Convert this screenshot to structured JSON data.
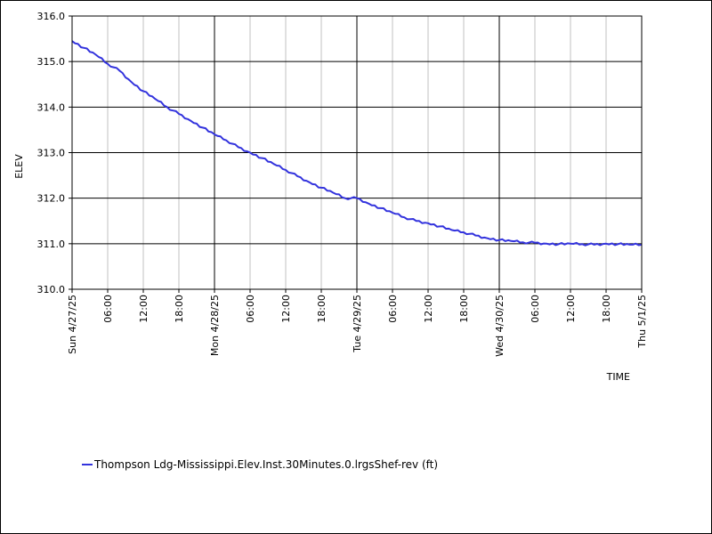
{
  "chart_data": {
    "type": "line",
    "title": "",
    "xlabel": "TIME",
    "ylabel": "ELEV",
    "ylim": [
      310.0,
      316.0
    ],
    "y_ticks": [
      "310.0",
      "311.0",
      "312.0",
      "313.0",
      "314.0",
      "315.0",
      "316.0"
    ],
    "x_range": [
      "2025-04-27 00:00",
      "2025-05-01 00:00"
    ],
    "x_major_ticks": [
      "Sun 4/27/25",
      "Mon 4/28/25",
      "Tue 4/29/25",
      "Wed 4/30/25",
      "Thu 5/1/25"
    ],
    "x_minor_tick_label_pattern": [
      "06:00",
      "12:00",
      "18:00"
    ],
    "grid": true,
    "legend_position": "bottom-left",
    "series": [
      {
        "name": "Thompson Ldg-Mississippi.Elev.Inst.30Minutes.0.lrgsShef-rev (ft)",
        "color": "#3333dd",
        "x": [
          "2025-04-27 00:00",
          "2025-04-27 02:00",
          "2025-04-27 04:00",
          "2025-04-27 06:00",
          "2025-04-27 08:00",
          "2025-04-27 10:00",
          "2025-04-27 12:00",
          "2025-04-27 14:00",
          "2025-04-27 16:00",
          "2025-04-27 18:00",
          "2025-04-27 20:00",
          "2025-04-27 22:00",
          "2025-04-28 00:00",
          "2025-04-28 02:00",
          "2025-04-28 04:00",
          "2025-04-28 06:00",
          "2025-04-28 08:00",
          "2025-04-28 10:00",
          "2025-04-28 12:00",
          "2025-04-28 14:00",
          "2025-04-28 16:00",
          "2025-04-28 18:00",
          "2025-04-28 20:00",
          "2025-04-28 22:00",
          "2025-04-29 00:00",
          "2025-04-29 02:00",
          "2025-04-29 04:00",
          "2025-04-29 06:00",
          "2025-04-29 08:00",
          "2025-04-29 10:00",
          "2025-04-29 12:00",
          "2025-04-29 14:00",
          "2025-04-29 16:00",
          "2025-04-29 18:00",
          "2025-04-29 20:00",
          "2025-04-29 22:00",
          "2025-04-30 00:00",
          "2025-04-30 02:00",
          "2025-04-30 04:00",
          "2025-04-30 06:00",
          "2025-04-30 08:00",
          "2025-04-30 10:00",
          "2025-04-30 12:00",
          "2025-04-30 14:00",
          "2025-04-30 16:00",
          "2025-04-30 18:00",
          "2025-04-30 20:00",
          "2025-04-30 22:00",
          "2025-05-01 00:00"
        ],
        "y": [
          315.45,
          315.3,
          315.15,
          314.95,
          314.8,
          314.55,
          314.35,
          314.18,
          314.0,
          313.85,
          313.7,
          313.55,
          313.4,
          313.27,
          313.12,
          313.0,
          312.88,
          312.75,
          312.62,
          312.48,
          312.35,
          312.23,
          312.12,
          312.0,
          312.0,
          311.88,
          311.78,
          311.68,
          311.58,
          311.5,
          311.45,
          311.38,
          311.3,
          311.25,
          311.18,
          311.12,
          311.08,
          311.06,
          311.03,
          311.02,
          311.0,
          310.99,
          311.0,
          310.99,
          310.98,
          311.0,
          310.99,
          310.98,
          310.98
        ]
      }
    ]
  }
}
